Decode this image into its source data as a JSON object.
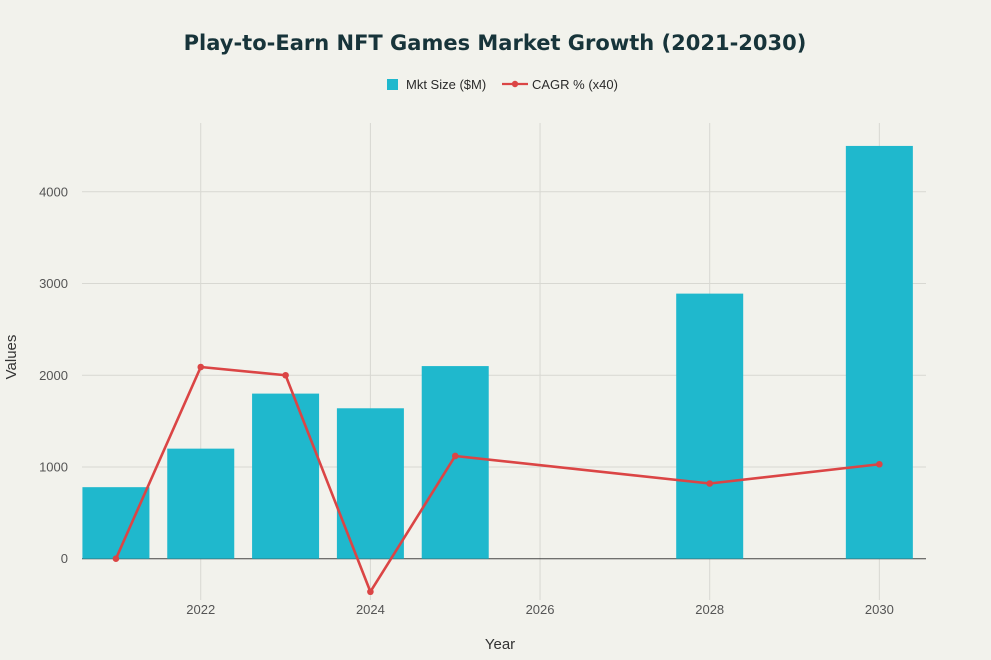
{
  "chart_data": {
    "type": "bar",
    "title": "Play-to-Earn NFT Games Market Growth (2021-2030)",
    "xlabel": "Year",
    "ylabel": "Values",
    "ylim": [
      -450,
      4750
    ],
    "xlim": [
      2020.6,
      2030.55
    ],
    "x_ticks": [
      2022,
      2024,
      2026,
      2028,
      2030
    ],
    "y_ticks": [
      0,
      1000,
      2000,
      3000,
      4000
    ],
    "grid": true,
    "legend_position": "top-center",
    "series": [
      {
        "name": "Mkt Size ($M)",
        "kind": "bar",
        "color": "#1fb8cd",
        "x": [
          2021,
          2022,
          2023,
          2024,
          2025,
          2028,
          2030
        ],
        "values": [
          780,
          1200,
          1800,
          1640,
          2100,
          2890,
          4500
        ]
      },
      {
        "name": "CAGR % (x40)",
        "kind": "line",
        "color": "#db4545",
        "x": [
          2021,
          2022,
          2023,
          2024,
          2025,
          2028,
          2030
        ],
        "values": [
          0,
          2090,
          2000,
          -360,
          1120,
          820,
          1030
        ]
      }
    ]
  }
}
